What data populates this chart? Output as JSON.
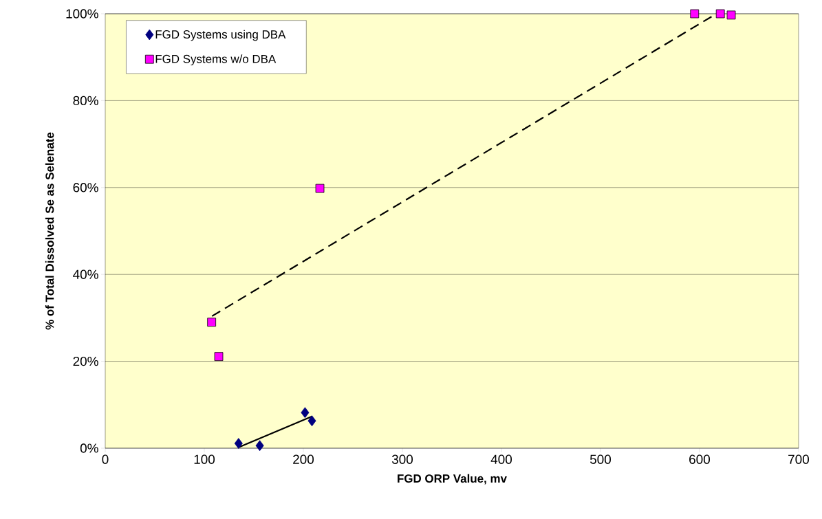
{
  "chart_data": {
    "type": "scatter",
    "xlabel": "FGD ORP Value, mv",
    "ylabel": "% of Total Dissolved Se as Selenate",
    "xlim": [
      0,
      700
    ],
    "xticks": [
      0,
      100,
      200,
      300,
      400,
      500,
      600,
      700
    ],
    "ylim": [
      0,
      100
    ],
    "yticks": [
      {
        "value": 0,
        "label": "0%"
      },
      {
        "value": 20,
        "label": "20%"
      },
      {
        "value": 40,
        "label": "40%"
      },
      {
        "value": 60,
        "label": "60%"
      },
      {
        "value": 80,
        "label": "80%"
      },
      {
        "value": 100,
        "label": "100%"
      }
    ],
    "grid": "y",
    "legend": "top left",
    "series": [
      {
        "name": "FGD Systems using DBA",
        "color": "#000080",
        "marker": "diamond",
        "x": [
          134.6,
          156,
          201.7,
          208.7
        ],
        "values": [
          1.1,
          0.6,
          8.2,
          6.3
        ]
      },
      {
        "name": "FGD Systems w/o DBA",
        "color": "#ff00ff",
        "marker": "square",
        "x": [
          107.4,
          114.6,
          216.7,
          595,
          621,
          632
        ],
        "values": [
          29.0,
          21.1,
          59.8,
          100,
          100,
          99.7
        ]
      },
      {
        "type": "line",
        "color": "#000000",
        "marker": "none",
        "line_style": "solid",
        "x": [
          134.6,
          208.7
        ],
        "values": [
          0.2,
          7.3
        ]
      },
      {
        "type": "line",
        "color": "#000000",
        "marker": "none",
        "line_style": "dashed",
        "x": [
          107.8,
          617
        ],
        "values": [
          30.4,
          100
        ]
      }
    ]
  }
}
